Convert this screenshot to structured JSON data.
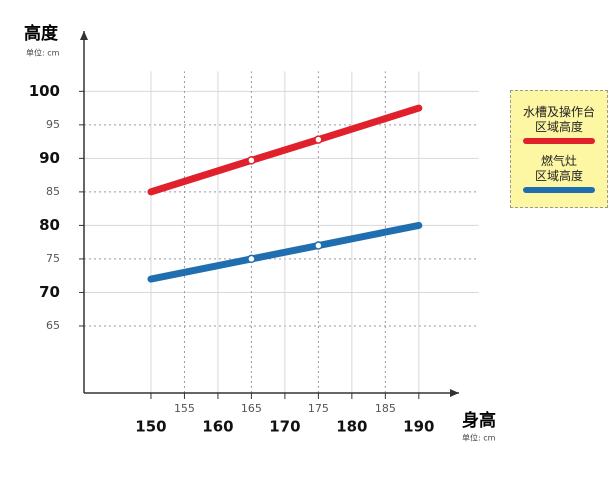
{
  "chart_data": {
    "type": "line",
    "y_label": "高度",
    "y_unit": "单位: cm",
    "x_label": "身高",
    "x_unit": "单位: cm",
    "x": [
      150,
      165,
      175,
      190
    ],
    "series": [
      {
        "name": "水槽及操作台\n区域高度",
        "color": "#e0202a",
        "values": [
          85,
          89.7,
          92.8,
          97.5
        ]
      },
      {
        "name": "燃气灶\n区域高度",
        "color": "#1f6fb0",
        "values": [
          72,
          75,
          77,
          80
        ]
      }
    ],
    "xlim": [
      140,
      196
    ],
    "ylim": [
      55,
      109
    ],
    "xticks_major": [
      150,
      160,
      170,
      180,
      190
    ],
    "xticks_minor": [
      155,
      165,
      175,
      185
    ],
    "yticks_major": [
      70,
      80,
      90,
      100
    ],
    "yticks_minor": [
      65,
      75,
      85,
      95
    ],
    "grid": true
  }
}
